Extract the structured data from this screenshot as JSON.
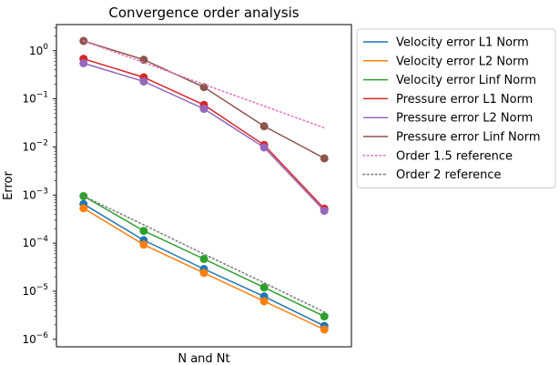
{
  "chart_data": {
    "type": "line",
    "title": "Convergence order analysis",
    "xlabel": "N and Nt",
    "ylabel": "Error",
    "yscale": "log",
    "ylim": [
      7e-07,
      3.5
    ],
    "y_ticks": [
      {
        "value": 1e-06,
        "base": "10",
        "exp": "−6"
      },
      {
        "value": 1e-05,
        "base": "10",
        "exp": "−5"
      },
      {
        "value": 0.0001,
        "base": "10",
        "exp": "−4"
      },
      {
        "value": 0.001,
        "base": "10",
        "exp": "−3"
      },
      {
        "value": 0.01,
        "base": "10",
        "exp": "−2"
      },
      {
        "value": 0.1,
        "base": "10",
        "exp": "−1"
      },
      {
        "value": 1,
        "base": "10",
        "exp": "0"
      }
    ],
    "x_ticks": [],
    "x": [
      1,
      2,
      3,
      4,
      5
    ],
    "grid": false,
    "legend_position": "outside top-right",
    "series": [
      {
        "name": "Velocity error L1 Norm",
        "color": "#1f77b4",
        "style": "solid",
        "markers": true,
        "values": [
          0.00065,
          0.000115,
          2.9e-05,
          7.8e-06,
          1.9e-06
        ]
      },
      {
        "name": "Velocity error L2 Norm",
        "color": "#ff7f0e",
        "style": "solid",
        "markers": true,
        "values": [
          0.00053,
          9.3e-05,
          2.4e-05,
          6.2e-06,
          1.6e-06
        ]
      },
      {
        "name": "Velocity error Linf Norm",
        "color": "#2ca02c",
        "style": "solid",
        "markers": true,
        "values": [
          0.00095,
          0.00018,
          4.7e-05,
          1.2e-05,
          3e-06
        ]
      },
      {
        "name": "Pressure error L1 Norm",
        "color": "#d62728",
        "style": "solid",
        "markers": true,
        "values": [
          0.68,
          0.28,
          0.075,
          0.011,
          0.00052
        ]
      },
      {
        "name": "Pressure error L2 Norm",
        "color": "#9467bd",
        "style": "solid",
        "markers": true,
        "values": [
          0.55,
          0.23,
          0.062,
          0.0098,
          0.00047
        ]
      },
      {
        "name": "Pressure error Linf Norm",
        "color": "#8c564b",
        "style": "solid",
        "markers": true,
        "values": [
          1.6,
          0.65,
          0.175,
          0.027,
          0.0058
        ]
      },
      {
        "name": "Order 1.5 reference",
        "color": "#e377c2",
        "style": "dotted",
        "markers": false,
        "values": [
          1.6,
          0.57,
          0.2,
          0.071,
          0.025
        ]
      },
      {
        "name": "Order 2 reference",
        "color": "#7f7f7f",
        "style": "dotted",
        "markers": false,
        "values": [
          0.00095,
          0.00024,
          5.9e-05,
          1.5e-05,
          3.7e-06
        ]
      }
    ]
  }
}
